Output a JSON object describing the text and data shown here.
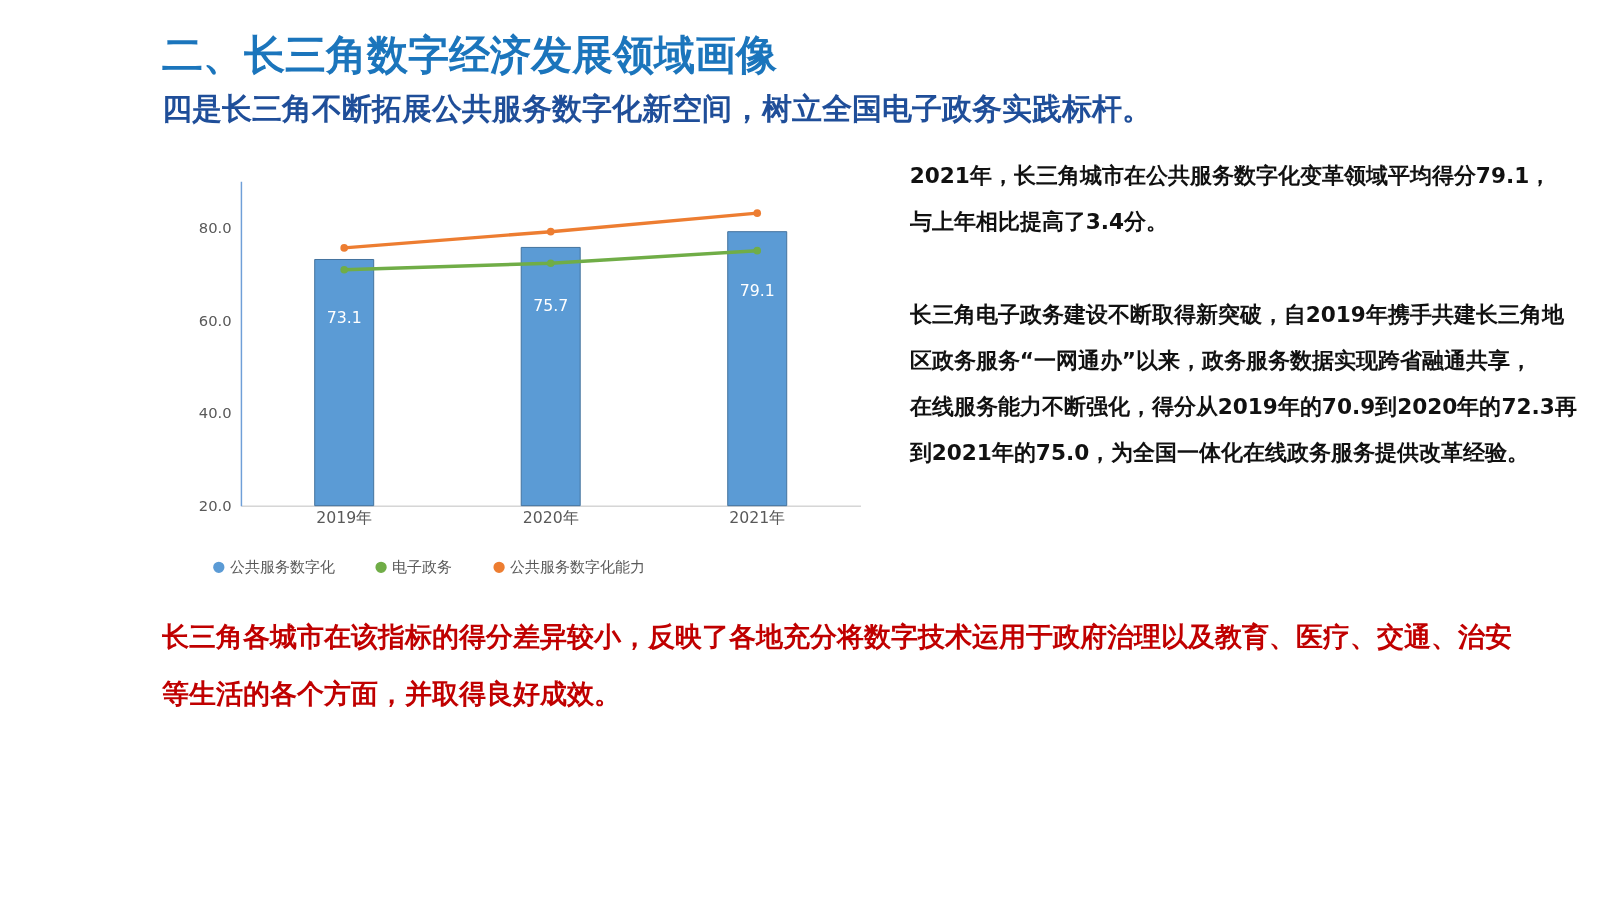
{
  "chart_data": {
    "type": "bar",
    "title": "二、长三角数字经济发展领域画像",
    "subtitle": "四是长三角不断拓展公共服务数字化新空间，树立全国电子政务实践标杆。",
    "categories": [
      "2019年",
      "2020年",
      "2021年"
    ],
    "series": [
      {
        "name": "公共服务数字化",
        "color": "#5b9bd5",
        "values": [
          73.1,
          75.7,
          79.1
        ],
        "value_labels": [
          "73.1",
          "75.7",
          "79.1"
        ]
      },
      {
        "name": "电子政务",
        "type": "line",
        "color": "#70ad47",
        "values": [
          70.9,
          72.3,
          75.0
        ]
      },
      {
        "name": "公共服务数字化能力",
        "type": "line",
        "color": "#ed7d31",
        "values": [
          75.6,
          79.1,
          83.1
        ]
      }
    ],
    "marker": "circle",
    "ylim": [
      20,
      90
    ],
    "yticks": [
      {
        "value": 20,
        "label": "20.0"
      },
      {
        "value": 40,
        "label": "40.0"
      },
      {
        "value": 60,
        "label": "60.0"
      },
      {
        "value": 80,
        "label": "80.0"
      }
    ],
    "grid": false,
    "legend": "bottom",
    "annotations": [
      "2021年，长三角城市在公共服务数字化变革领域平均得分79.1，与上年相比提高了3.4分。",
      "长三角电子政务建设不断取得新突破，自2019年携手共建长三角地区政务服务“一网通办”以来，政务服务数据实现跨省融通共享，在线服务能力不断强化，得分从2019年的70.9到2020年的72.3再到2021年的75.0，为全国一体化在线政务服务提供改革经验。",
      "长三角各城市在该指标的得分差异较小，反映了各地充分将数字技术运用于政府治理以及教育、医疗、交通、治安等生活的各个方面，并取得良好成效。"
    ]
  }
}
